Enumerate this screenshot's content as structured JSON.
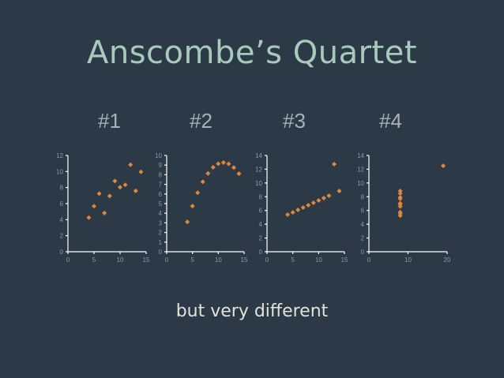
{
  "slide": {
    "title": "Anscombe’s Quartet",
    "subtitle": "but very different"
  },
  "colors": {
    "background": "#2c3a48",
    "title": "#a9c9bd",
    "marker": "#e0873a"
  },
  "chart_data": [
    {
      "type": "scatter",
      "panel_label": "#1",
      "xlim": [
        0,
        15
      ],
      "ylim": [
        0,
        12
      ],
      "xticks": [
        0,
        5,
        10,
        15
      ],
      "yticks": [
        0,
        2,
        4,
        6,
        8,
        10,
        12
      ],
      "x": [
        10,
        8,
        13,
        9,
        11,
        14,
        6,
        4,
        12,
        7,
        5
      ],
      "y": [
        8.04,
        6.95,
        7.58,
        8.81,
        8.33,
        9.96,
        7.24,
        4.26,
        10.84,
        4.82,
        5.68
      ]
    },
    {
      "type": "scatter",
      "panel_label": "#2",
      "xlim": [
        0,
        15
      ],
      "ylim": [
        0,
        10
      ],
      "xticks": [
        0,
        5,
        10,
        15
      ],
      "yticks": [
        0,
        1,
        2,
        3,
        4,
        5,
        6,
        7,
        8,
        9,
        10
      ],
      "x": [
        10,
        8,
        13,
        9,
        11,
        14,
        6,
        4,
        12,
        7,
        5
      ],
      "y": [
        9.14,
        8.14,
        8.74,
        8.77,
        9.26,
        8.1,
        6.13,
        3.1,
        9.13,
        7.26,
        4.74
      ]
    },
    {
      "type": "scatter",
      "panel_label": "#3",
      "xlim": [
        0,
        15
      ],
      "ylim": [
        0,
        14
      ],
      "xticks": [
        0,
        5,
        10,
        15
      ],
      "yticks": [
        0,
        2,
        4,
        6,
        8,
        10,
        12,
        14
      ],
      "x": [
        10,
        8,
        13,
        9,
        11,
        14,
        6,
        4,
        12,
        7,
        5
      ],
      "y": [
        7.46,
        6.77,
        12.74,
        7.11,
        7.81,
        8.84,
        6.08,
        5.39,
        8.15,
        6.42,
        5.73
      ]
    },
    {
      "type": "scatter",
      "panel_label": "#4",
      "xlim": [
        0,
        20
      ],
      "ylim": [
        0,
        14
      ],
      "xticks": [
        0,
        10,
        20
      ],
      "yticks": [
        0,
        2,
        4,
        6,
        8,
        10,
        12,
        14
      ],
      "x": [
        8,
        8,
        8,
        8,
        8,
        8,
        8,
        19,
        8,
        8,
        8
      ],
      "y": [
        6.58,
        5.76,
        7.71,
        8.84,
        8.47,
        7.04,
        5.25,
        12.5,
        5.56,
        7.91,
        6.89
      ]
    }
  ]
}
